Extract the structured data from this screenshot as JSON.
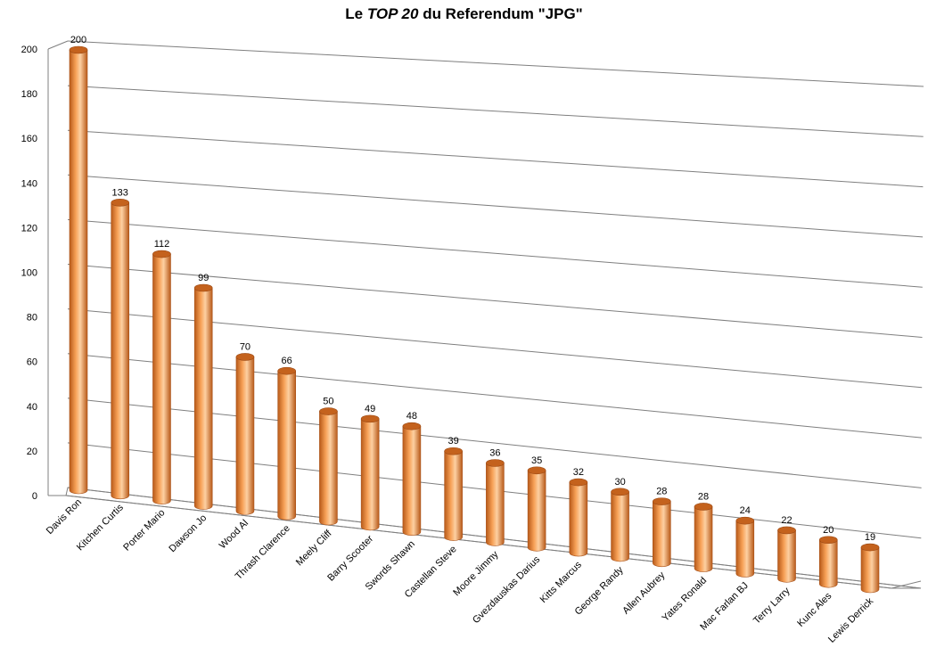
{
  "chart_data": {
    "type": "bar",
    "title": {
      "prefix": "Le ",
      "emphasis": "TOP 20",
      "suffix": " du Referendum \"JPG\""
    },
    "xlabel": "",
    "ylabel": "",
    "ylim": [
      0,
      200
    ],
    "yticks": [
      "0",
      "20",
      "40",
      "60",
      "80",
      "100",
      "120",
      "140",
      "160",
      "180",
      "200"
    ],
    "grid": true,
    "legend": "none",
    "bar_style": "3d-cylinder",
    "colors": {
      "bar_top": "#c4621d",
      "bar_dark": "#b85a19",
      "bar_mid": "#f7a157",
      "bar_light": "#fdd0a2",
      "grid": "#7f7f7f"
    },
    "categories": [
      "Davis Ron",
      "Kitchen Curtis",
      "Porter Mario",
      "Dawson Jo",
      "Wood Al",
      "Thrash Clarence",
      "Meely Cliff",
      "Barry Scooter",
      "Swords Shawn",
      "Castellan Steve",
      "Moore Jimmy",
      "Gvezdauskas Darius",
      "Kitts Marcus",
      "George Randy",
      "Allen Aubrey",
      "Yates Ronald",
      "Mac Farlan BJ",
      "Terry Larry",
      "Kunc Ales",
      "Lewis Derrick"
    ],
    "values": [
      200,
      133,
      112,
      99,
      70,
      66,
      50,
      49,
      48,
      39,
      36,
      35,
      32,
      30,
      28,
      28,
      24,
      22,
      20,
      19
    ]
  }
}
